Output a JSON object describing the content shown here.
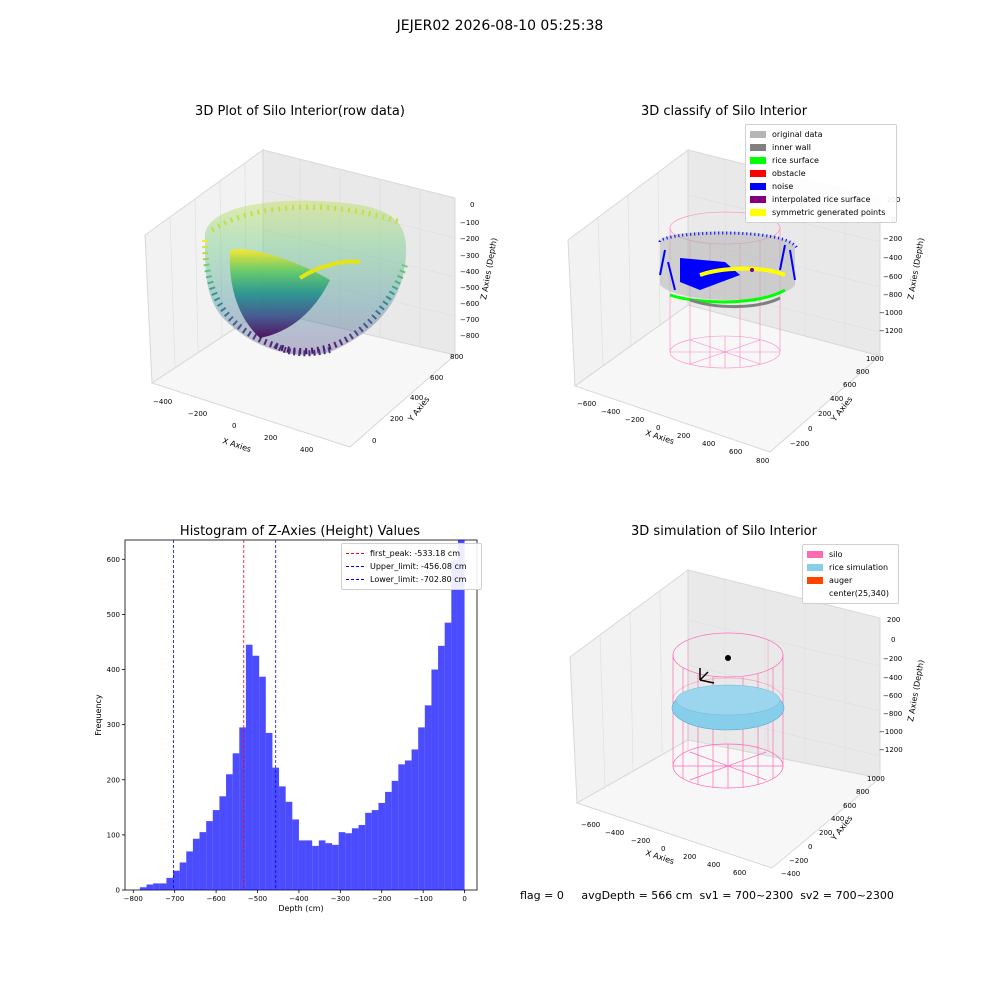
{
  "figure": {
    "suptitle": "JEJER02 2026-08-10 05:25:38",
    "footer": "flag = 0     avgDepth = 566 cm  sv1 = 700~2300  sv2 = 700~2300"
  },
  "colors": {
    "pane_gray": "#f2f2f2",
    "grid_gray": "#dcdcdc",
    "hist_blue": "#0000ff",
    "silo_pink": "#ff69b4",
    "rice_sky": "#87ceeb"
  },
  "plot1": {
    "title": "3D Plot of Silo Interior(row data)",
    "xlabel": "X Axies",
    "ylabel": "Y Axies",
    "zlabel": "Z Axies (Depth)",
    "xticks": [
      "−400",
      "−200",
      "0",
      "200",
      "400"
    ],
    "yticks": [
      "0",
      "200",
      "400",
      "600",
      "800"
    ],
    "zticks": [
      "0",
      "−100",
      "−200",
      "−300",
      "−400",
      "−500",
      "−600",
      "−700",
      "−800"
    ]
  },
  "plot2": {
    "title": "3D classify of Silo Interior",
    "xlabel": "X Axies",
    "ylabel": "Y Axies",
    "zlabel": "Z Axies (Depth)",
    "xticks": [
      "−600",
      "−400",
      "−200",
      "0",
      "200",
      "400",
      "600",
      "800"
    ],
    "yticks": [
      "−200",
      "0",
      "200",
      "400",
      "600",
      "800",
      "1000"
    ],
    "zticks": [
      "200",
      "0",
      "−200",
      "−400",
      "−600",
      "−800",
      "−1000",
      "−1200"
    ],
    "legend": [
      {
        "label": "original data",
        "color": "#b4b4b4"
      },
      {
        "label": "inner wall",
        "color": "#808080"
      },
      {
        "label": "rice surface",
        "color": "#00ff00"
      },
      {
        "label": "obstacle",
        "color": "#ff0000"
      },
      {
        "label": "noise",
        "color": "#0000ff"
      },
      {
        "label": "interpolated rice surface",
        "color": "#800080"
      },
      {
        "label": "symmetric generated points",
        "color": "#ffff00"
      }
    ]
  },
  "plot4": {
    "title": "3D simulation of Silo Interior",
    "xlabel": "X Axies",
    "ylabel": "Y Axies",
    "zlabel": "Z Axies (Depth)",
    "xticks": [
      "−600",
      "−400",
      "−200",
      "0",
      "200",
      "400",
      "600"
    ],
    "yticks": [
      "−400",
      "−200",
      "0",
      "200",
      "400",
      "600",
      "800",
      "1000"
    ],
    "zticks": [
      "200",
      "0",
      "−200",
      "−400",
      "−600",
      "−800",
      "−1000",
      "−1200"
    ],
    "legend": [
      {
        "label": "silo",
        "color": "#ff69b4"
      },
      {
        "label": "rice simulation",
        "color": "#87ceeb"
      },
      {
        "label": "auger",
        "color": "#ff4500"
      },
      {
        "label": "center(25,340)",
        "color": "none"
      }
    ]
  },
  "chart_data": {
    "type": "bar",
    "title": "Histogram of Z-Axies (Height) Values",
    "xlabel": "Depth (cm)",
    "ylabel": "Frequency",
    "xlim": [
      -820,
      30
    ],
    "ylim": [
      0,
      635
    ],
    "bin_width": 16,
    "xticks": [
      "−800",
      "−700",
      "−600",
      "−500",
      "−400",
      "−300",
      "−200",
      "−100",
      "0"
    ],
    "xtick_values": [
      -800,
      -700,
      -600,
      -500,
      -400,
      -300,
      -200,
      -100,
      0
    ],
    "yticks": [
      "0",
      "100",
      "200",
      "300",
      "400",
      "500",
      "600"
    ],
    "ytick_values": [
      0,
      100,
      200,
      300,
      400,
      500,
      600
    ],
    "bin_left_edges": [
      -784,
      -768,
      -752,
      -736,
      -720,
      -704,
      -688,
      -672,
      -656,
      -640,
      -624,
      -608,
      -592,
      -576,
      -560,
      -544,
      -528,
      -512,
      -496,
      -480,
      -464,
      -448,
      -432,
      -416,
      -400,
      -384,
      -368,
      -352,
      -336,
      -320,
      -304,
      -288,
      -272,
      -256,
      -240,
      -224,
      -208,
      -192,
      -176,
      -160,
      -144,
      -128,
      -112,
      -96,
      -80,
      -64,
      -48,
      -32,
      -16
    ],
    "values": [
      5,
      10,
      12,
      12,
      22,
      35,
      50,
      70,
      93,
      105,
      125,
      145,
      170,
      210,
      248,
      295,
      445,
      425,
      387,
      285,
      222,
      188,
      160,
      128,
      90,
      90,
      80,
      90,
      85,
      82,
      105,
      103,
      112,
      118,
      140,
      145,
      158,
      178,
      198,
      228,
      235,
      255,
      295,
      335,
      400,
      443,
      485,
      598,
      635
    ],
    "vlines": [
      {
        "x": -533.18,
        "label": "first_peak: -533.18 cm",
        "color": "#ff0000"
      },
      {
        "x": -456.08,
        "label": "Upper_limit: -456.08 cm",
        "color": "#0000ff"
      },
      {
        "x": -702.8,
        "label": "Lower_limit: -702.80 cm",
        "color": "#0000ff"
      }
    ],
    "legend_position": "upper right"
  }
}
